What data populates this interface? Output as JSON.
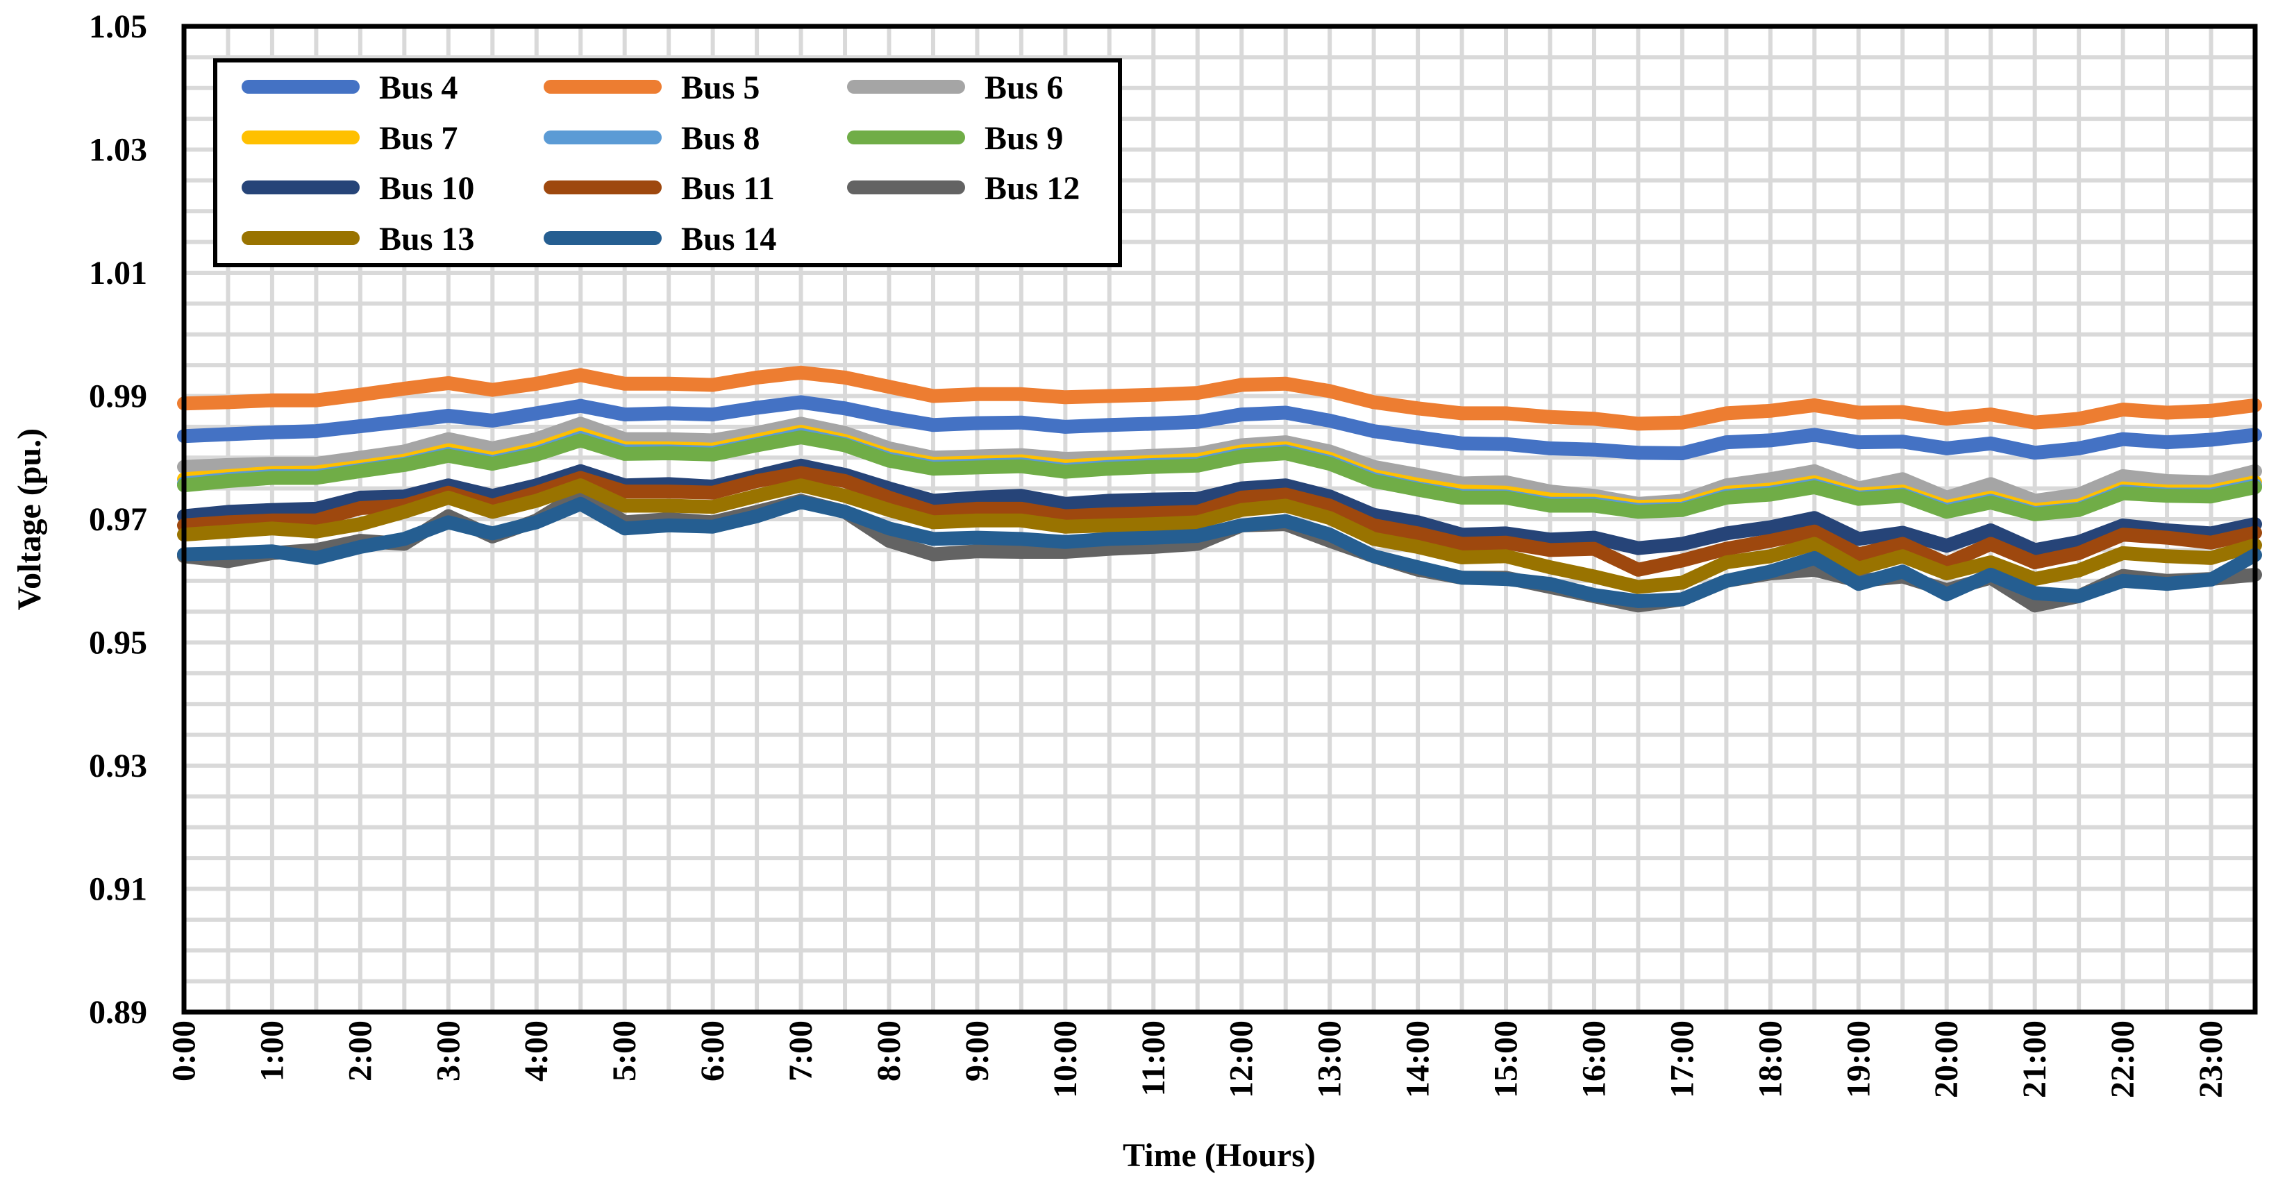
{
  "chart_data": {
    "type": "line",
    "title": "",
    "xlabel": "Time (Hours)",
    "ylabel": "Voltage (pu.)",
    "ylim": [
      0.89,
      1.05
    ],
    "yticks": [
      "1.05",
      "1.03",
      "1.01",
      "0.99",
      "0.97",
      "0.95",
      "0.93",
      "0.91",
      "0.89"
    ],
    "x_tick_labels": [
      "0:00",
      "1:00",
      "2:00",
      "3:00",
      "4:00",
      "5:00",
      "6:00",
      "7:00",
      "8:00",
      "9:00",
      "10:00",
      "11:00",
      "12:00",
      "13:00",
      "14:00",
      "15:00",
      "16:00",
      "17:00",
      "18:00",
      "19:00",
      "20:00",
      "21:00",
      "22:00",
      "23:00"
    ],
    "x": [
      0,
      0.5,
      1,
      1.5,
      2,
      2.5,
      3,
      3.5,
      4,
      4.5,
      5,
      5.5,
      6,
      6.5,
      7,
      7.5,
      8,
      8.5,
      9,
      9.5,
      10,
      10.5,
      11,
      11.5,
      12,
      12.5,
      13,
      13.5,
      14,
      14.5,
      15,
      15.5,
      16,
      16.5,
      17,
      17.5,
      18,
      18.5,
      19,
      19.5,
      20,
      20.5,
      21,
      21.5,
      22,
      22.5,
      23,
      23.5
    ],
    "grid": true,
    "legend_position": "top-left",
    "series": [
      {
        "name": "Bus 4",
        "color": "#4472C4",
        "values": [
          0.9835,
          0.9838,
          0.9841,
          0.9843,
          0.9851,
          0.9859,
          0.9868,
          0.986,
          0.9872,
          0.9884,
          0.987,
          0.9872,
          0.987,
          0.9881,
          0.989,
          0.988,
          0.9865,
          0.9853,
          0.9856,
          0.9857,
          0.985,
          0.9853,
          0.9855,
          0.9858,
          0.987,
          0.9873,
          0.986,
          0.9843,
          0.9833,
          0.9823,
          0.9822,
          0.9815,
          0.9813,
          0.9808,
          0.9807,
          0.9825,
          0.9828,
          0.9837,
          0.9825,
          0.9826,
          0.9815,
          0.9823,
          0.9808,
          0.9815,
          0.983,
          0.9825,
          0.9829,
          0.9837
        ]
      },
      {
        "name": "Bus 5",
        "color": "#ED7D31",
        "values": [
          0.9888,
          0.989,
          0.9893,
          0.9893,
          0.9902,
          0.9912,
          0.9921,
          0.991,
          0.992,
          0.9934,
          0.992,
          0.992,
          0.9918,
          0.993,
          0.9938,
          0.993,
          0.9915,
          0.99,
          0.9903,
          0.9903,
          0.9898,
          0.99,
          0.9902,
          0.9905,
          0.9918,
          0.992,
          0.9908,
          0.989,
          0.988,
          0.9872,
          0.9872,
          0.9866,
          0.9863,
          0.9855,
          0.9857,
          0.9872,
          0.9876,
          0.9885,
          0.9873,
          0.9874,
          0.9863,
          0.987,
          0.9857,
          0.9863,
          0.9878,
          0.9873,
          0.9876,
          0.9885
        ]
      },
      {
        "name": "Bus 6",
        "color": "#A5A5A5",
        "values": [
          0.9785,
          0.9788,
          0.979,
          0.979,
          0.98,
          0.981,
          0.983,
          0.9815,
          0.983,
          0.9855,
          0.983,
          0.983,
          0.9828,
          0.984,
          0.9855,
          0.984,
          0.9815,
          0.98,
          0.9802,
          0.9804,
          0.9798,
          0.98,
          0.9803,
          0.9806,
          0.982,
          0.9825,
          0.981,
          0.9785,
          0.9772,
          0.9758,
          0.976,
          0.9745,
          0.9738,
          0.9725,
          0.973,
          0.9755,
          0.9765,
          0.9778,
          0.975,
          0.9765,
          0.9735,
          0.9757,
          0.973,
          0.974,
          0.977,
          0.9762,
          0.976,
          0.9778
        ]
      },
      {
        "name": "Bus 7",
        "color": "#FFC000",
        "values": [
          0.9765,
          0.977,
          0.9775,
          0.9776,
          0.9785,
          0.9795,
          0.9812,
          0.9798,
          0.9814,
          0.9838,
          0.9815,
          0.9815,
          0.9813,
          0.9828,
          0.9842,
          0.9827,
          0.9803,
          0.979,
          0.9792,
          0.9794,
          0.9786,
          0.979,
          0.9793,
          0.9796,
          0.981,
          0.9815,
          0.9798,
          0.977,
          0.9756,
          0.9745,
          0.9743,
          0.9732,
          0.973,
          0.972,
          0.9722,
          0.9743,
          0.9748,
          0.976,
          0.974,
          0.9745,
          0.972,
          0.9735,
          0.9715,
          0.9722,
          0.975,
          0.9745,
          0.9745,
          0.976
        ]
      },
      {
        "name": "Bus 8",
        "color": "#5B9BD5",
        "values": [
          0.9758,
          0.9765,
          0.977,
          0.977,
          0.978,
          0.979,
          0.9806,
          0.9793,
          0.9808,
          0.9832,
          0.981,
          0.981,
          0.9808,
          0.9822,
          0.9837,
          0.9822,
          0.9798,
          0.9785,
          0.9787,
          0.9789,
          0.978,
          0.9785,
          0.9788,
          0.979,
          0.9805,
          0.981,
          0.9793,
          0.9765,
          0.975,
          0.9738,
          0.9737,
          0.9725,
          0.9725,
          0.9715,
          0.9717,
          0.9738,
          0.9743,
          0.9755,
          0.9735,
          0.974,
          0.9715,
          0.973,
          0.971,
          0.9717,
          0.9745,
          0.974,
          0.974,
          0.9755
        ]
      },
      {
        "name": "Bus 9",
        "color": "#70AD47",
        "values": [
          0.9755,
          0.9762,
          0.9767,
          0.9767,
          0.9778,
          0.9788,
          0.9803,
          0.979,
          0.9805,
          0.9828,
          0.9806,
          0.9807,
          0.9805,
          0.982,
          0.9833,
          0.982,
          0.9795,
          0.9782,
          0.9784,
          0.9786,
          0.9777,
          0.9782,
          0.9785,
          0.9787,
          0.9802,
          0.9807,
          0.979,
          0.9762,
          0.9748,
          0.9735,
          0.9735,
          0.9722,
          0.9722,
          0.9712,
          0.9715,
          0.9735,
          0.974,
          0.9752,
          0.9733,
          0.9738,
          0.9712,
          0.9727,
          0.9708,
          0.9715,
          0.9742,
          0.9738,
          0.9737,
          0.9752
        ]
      },
      {
        "name": "Bus 10",
        "color": "#264478",
        "values": [
          0.9705,
          0.9712,
          0.9715,
          0.9717,
          0.9735,
          0.9737,
          0.9755,
          0.9738,
          0.9755,
          0.9778,
          0.9755,
          0.9757,
          0.9753,
          0.977,
          0.9787,
          0.9772,
          0.975,
          0.973,
          0.9735,
          0.9738,
          0.9725,
          0.973,
          0.9732,
          0.9733,
          0.975,
          0.9755,
          0.9737,
          0.9707,
          0.9695,
          0.9675,
          0.9677,
          0.9667,
          0.967,
          0.9653,
          0.966,
          0.9677,
          0.9687,
          0.9702,
          0.9668,
          0.9678,
          0.9657,
          0.9682,
          0.965,
          0.9663,
          0.969,
          0.9682,
          0.9677,
          0.9692
        ]
      },
      {
        "name": "Bus 11",
        "color": "#9E480E",
        "values": [
          0.969,
          0.9695,
          0.9698,
          0.9698,
          0.9718,
          0.9722,
          0.9743,
          0.9722,
          0.9743,
          0.9767,
          0.9745,
          0.9745,
          0.9743,
          0.9762,
          0.9775,
          0.9762,
          0.9735,
          0.9712,
          0.9717,
          0.9717,
          0.9705,
          0.9708,
          0.971,
          0.9712,
          0.9735,
          0.974,
          0.9722,
          0.969,
          0.9677,
          0.966,
          0.9662,
          0.965,
          0.9652,
          0.9618,
          0.9633,
          0.9652,
          0.9665,
          0.968,
          0.9643,
          0.966,
          0.9628,
          0.966,
          0.963,
          0.9645,
          0.9675,
          0.967,
          0.9662,
          0.9678
        ]
      },
      {
        "name": "Bus 12",
        "color": "#636363",
        "values": [
          0.964,
          0.9632,
          0.9645,
          0.965,
          0.9665,
          0.966,
          0.9705,
          0.9672,
          0.9698,
          0.9742,
          0.9695,
          0.97,
          0.9695,
          0.9712,
          0.973,
          0.9712,
          0.9665,
          0.9643,
          0.9648,
          0.9647,
          0.9647,
          0.9652,
          0.9655,
          0.966,
          0.969,
          0.9692,
          0.9665,
          0.964,
          0.9618,
          0.9605,
          0.9605,
          0.959,
          0.9575,
          0.956,
          0.957,
          0.96,
          0.9612,
          0.9618,
          0.96,
          0.9607,
          0.9585,
          0.9605,
          0.956,
          0.9575,
          0.9608,
          0.96,
          0.9603,
          0.961
        ]
      },
      {
        "name": "Bus 13",
        "color": "#997300",
        "values": [
          0.9675,
          0.968,
          0.9685,
          0.968,
          0.9692,
          0.9712,
          0.9735,
          0.9712,
          0.973,
          0.9755,
          0.9722,
          0.9722,
          0.972,
          0.9738,
          0.9755,
          0.9738,
          0.9715,
          0.9695,
          0.9698,
          0.9698,
          0.9688,
          0.969,
          0.9692,
          0.9695,
          0.9715,
          0.9722,
          0.9702,
          0.9668,
          0.9655,
          0.9638,
          0.964,
          0.9622,
          0.9607,
          0.959,
          0.9597,
          0.963,
          0.964,
          0.966,
          0.962,
          0.964,
          0.9612,
          0.963,
          0.9603,
          0.9617,
          0.9645,
          0.964,
          0.9637,
          0.9658
        ]
      },
      {
        "name": "Bus 14",
        "color": "#255E91",
        "values": [
          0.9643,
          0.9645,
          0.9648,
          0.9637,
          0.9655,
          0.9668,
          0.9695,
          0.9677,
          0.9695,
          0.9725,
          0.9685,
          0.969,
          0.9688,
          0.9705,
          0.9728,
          0.9712,
          0.9685,
          0.9668,
          0.967,
          0.9668,
          0.9663,
          0.9668,
          0.967,
          0.9673,
          0.969,
          0.9697,
          0.9675,
          0.964,
          0.9622,
          0.9605,
          0.9603,
          0.9595,
          0.9577,
          0.9567,
          0.957,
          0.96,
          0.9615,
          0.9637,
          0.9595,
          0.9615,
          0.9578,
          0.961,
          0.958,
          0.9575,
          0.96,
          0.9595,
          0.9602,
          0.9642
        ]
      }
    ]
  }
}
